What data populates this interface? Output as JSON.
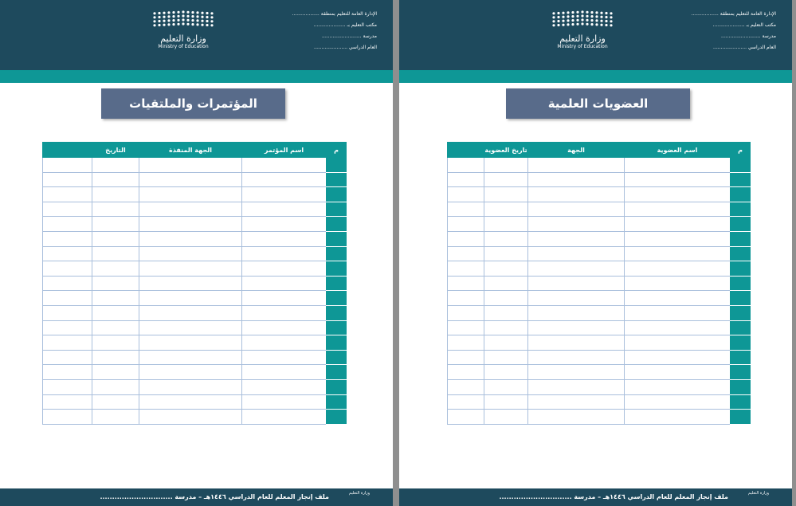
{
  "pages": [
    {
      "header": {
        "lines": [
          "الإدارة العامة للتعليم بمنطقة ..................",
          "مكتب التعليم بـ .....................",
          "مدرسة ..........................",
          "العام الدراسي ......................"
        ],
        "logo_ar": "وزارة التعليم",
        "logo_en": "Ministry of Education"
      },
      "title": "المؤتمرات والملتقيات",
      "table": {
        "headers": [
          "م",
          "اسم المؤتمر",
          "الجهة المنفذة",
          "التاريخ"
        ]
      },
      "footer": {
        "text": "ملف إنجاز المعلم للعام الدراسي ١٤٤٦هـ – مدرسة ..............................",
        "logo": "وزارة التعليم"
      }
    },
    {
      "header": {
        "lines": [
          "الإدارة العامة للتعليم بمنطقة ..................",
          "مكتب التعليم بـ .....................",
          "مدرسة ..........................",
          "العام الدراسي ......................"
        ],
        "logo_ar": "وزارة التعليم",
        "logo_en": "Ministry of Education"
      },
      "title": "العضويات العلمية",
      "table": {
        "headers": [
          "م",
          "اسم العضوية",
          "الجهة",
          "تاريخ العضوية"
        ]
      },
      "footer": {
        "text": "ملف إنجاز المعلم للعام الدراسي ١٤٤٦هـ – مدرسة ..............................",
        "logo": "وزارة التعليم"
      }
    }
  ]
}
